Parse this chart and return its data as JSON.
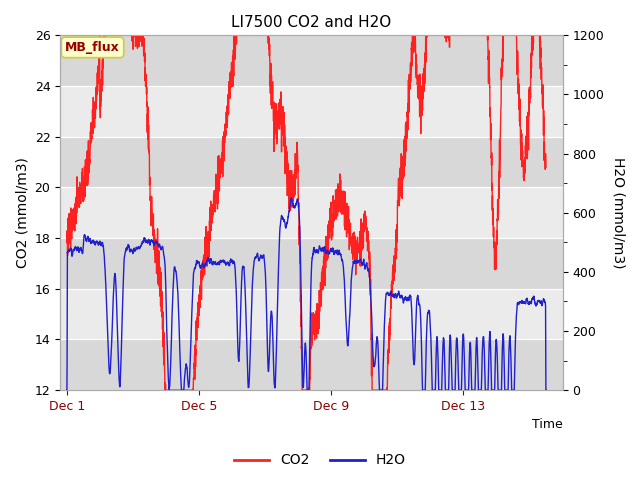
{
  "title": "LI7500 CO2 and H2O",
  "xlabel": "Time",
  "ylabel_left": "CO2 (mmol/m3)",
  "ylabel_right": "H2O (mmol/m3)",
  "ylim_left": [
    12,
    26
  ],
  "ylim_right": [
    0,
    1200
  ],
  "yticks_left": [
    12,
    14,
    16,
    18,
    20,
    22,
    24,
    26
  ],
  "yticks_right": [
    0,
    200,
    400,
    600,
    800,
    1000,
    1200
  ],
  "xtick_labels": [
    "Dec 1",
    "Dec 5",
    "Dec 9",
    "Dec 13"
  ],
  "xtick_positions": [
    0,
    4,
    8,
    12
  ],
  "xlim": [
    -0.2,
    15.0
  ],
  "co2_color": "#ff2020",
  "h2o_color": "#2020cc",
  "bg_color": "#ffffff",
  "plot_bg_light": "#ebebeb",
  "plot_bg_dark": "#d8d8d8",
  "annotation_text": "MB_flux",
  "annotation_fontsize": 9,
  "title_fontsize": 11,
  "axis_label_fontsize": 10,
  "tick_fontsize": 9,
  "xtick_color": "#880000",
  "legend_box_facecolor": "#ffffcc",
  "legend_box_edgecolor": "#cccc44",
  "linewidth": 1.0
}
